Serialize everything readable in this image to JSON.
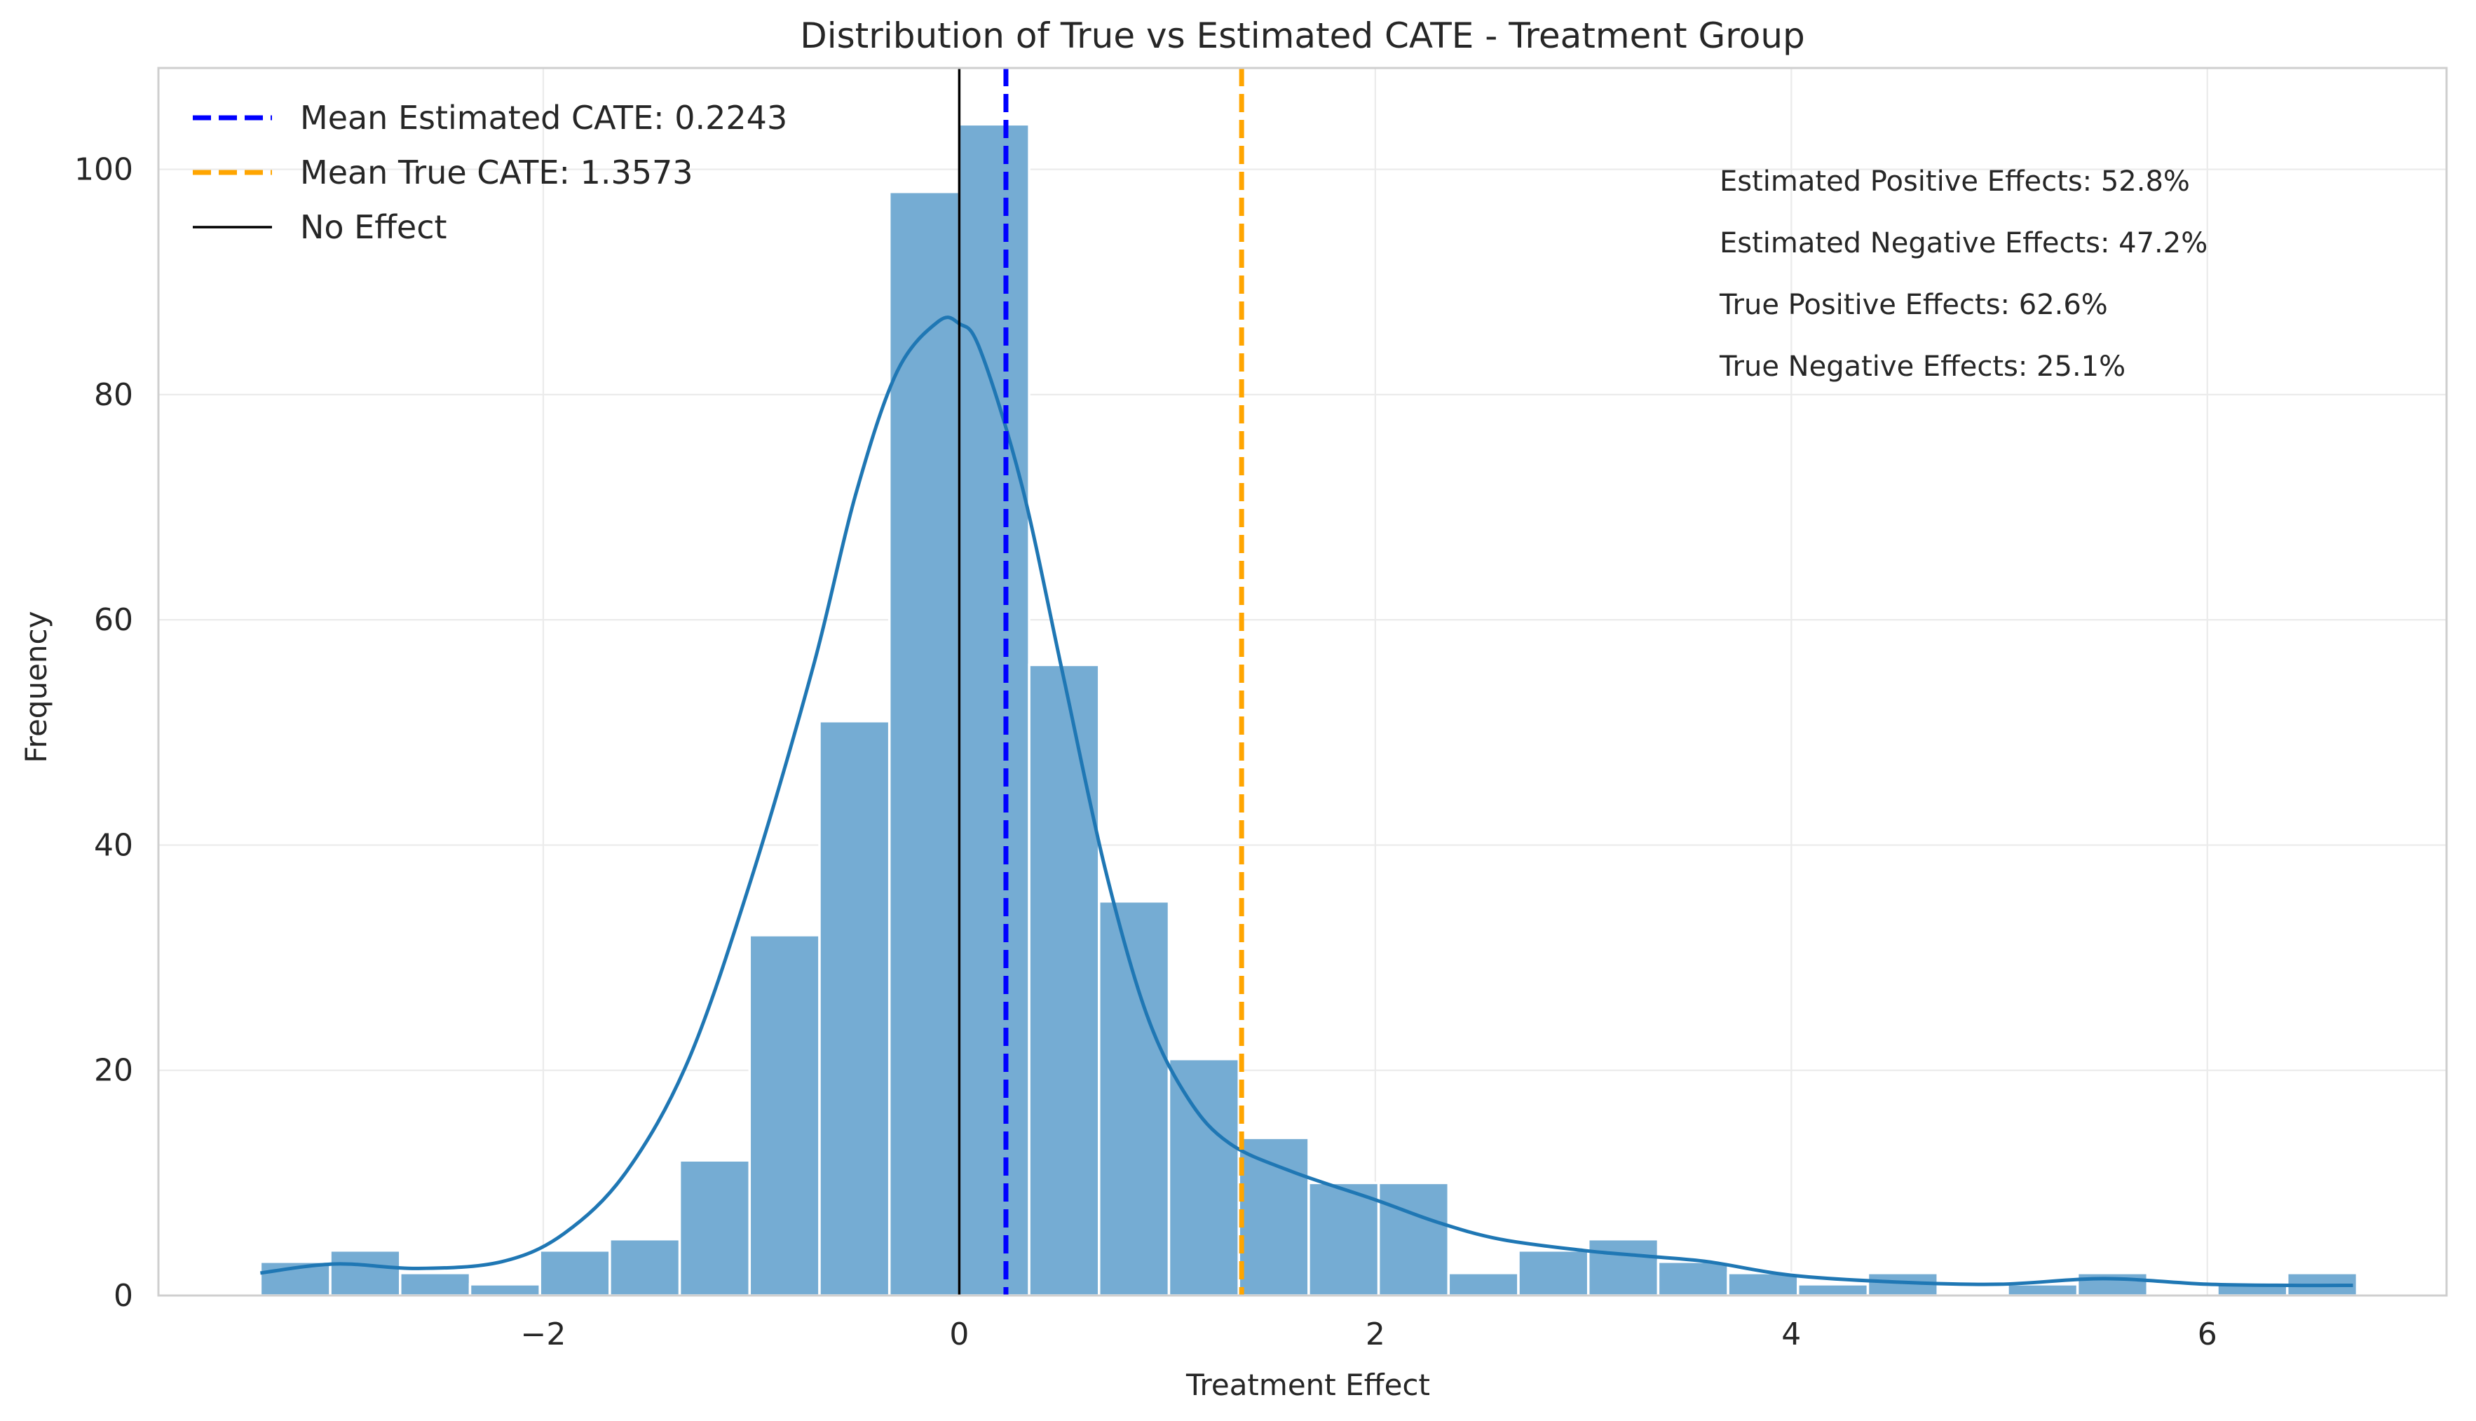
{
  "chart_data": {
    "type": "bar",
    "title": "Distribution of True vs Estimated CATE - Treatment Group",
    "xlabel": "Treatment Effect",
    "ylabel": "Frequency",
    "xlim": [
      -3.85,
      7.15
    ],
    "ylim": [
      0,
      109
    ],
    "xticks": [
      -2,
      0,
      2,
      4,
      6
    ],
    "xtick_labels": [
      "−2",
      "0",
      "2",
      "4",
      "6"
    ],
    "yticks": [
      0,
      20,
      40,
      60,
      80,
      100
    ],
    "grid": true,
    "histogram": {
      "bin_start": -3.36,
      "bin_width": 0.336,
      "counts": [
        3,
        4,
        2,
        1,
        4,
        5,
        12,
        32,
        51,
        98,
        104,
        56,
        35,
        21,
        14,
        10,
        10,
        2,
        4,
        5,
        3,
        2,
        1,
        2,
        0,
        1,
        2,
        0,
        1,
        2
      ],
      "color": "#75acd3"
    },
    "kde": {
      "color": "#1f77b4",
      "x": [
        -3.36,
        -3.0,
        -2.6,
        -2.2,
        -1.9,
        -1.6,
        -1.3,
        -1.0,
        -0.7,
        -0.5,
        -0.3,
        -0.1,
        0.0,
        0.1,
        0.3,
        0.5,
        0.7,
        0.9,
        1.1,
        1.3,
        1.6,
        2.0,
        2.3,
        2.6,
        3.0,
        3.3,
        3.6,
        4.0,
        4.5,
        5.0,
        5.5,
        6.0,
        6.4,
        6.7
      ],
      "y": [
        2,
        2.8,
        2.4,
        3.0,
        5.5,
        11,
        21,
        37,
        56,
        71,
        82,
        86.5,
        86.3,
        84,
        72,
        55,
        38,
        25,
        17.5,
        13.5,
        11,
        8.5,
        6.5,
        5,
        4,
        3.5,
        3,
        1.8,
        1.2,
        1,
        1.5,
        1,
        0.9,
        0.9
      ]
    },
    "reference_lines": [
      {
        "label": "Mean Estimated CATE: 0.2243",
        "x": 0.2243,
        "color": "#0000ff",
        "style": "dashed"
      },
      {
        "label": "Mean True CATE: 1.3573",
        "x": 1.3573,
        "color": "#ffa500",
        "style": "dashed"
      },
      {
        "label": "No Effect",
        "x": 0,
        "color": "#000000",
        "style": "solid"
      }
    ],
    "legend_position": "top-left",
    "annotations": [
      "Estimated Positive Effects: 52.8%",
      "Estimated Negative Effects: 47.2%",
      "True Positive Effects: 62.6%",
      "True Negative Effects: 25.1%"
    ]
  }
}
